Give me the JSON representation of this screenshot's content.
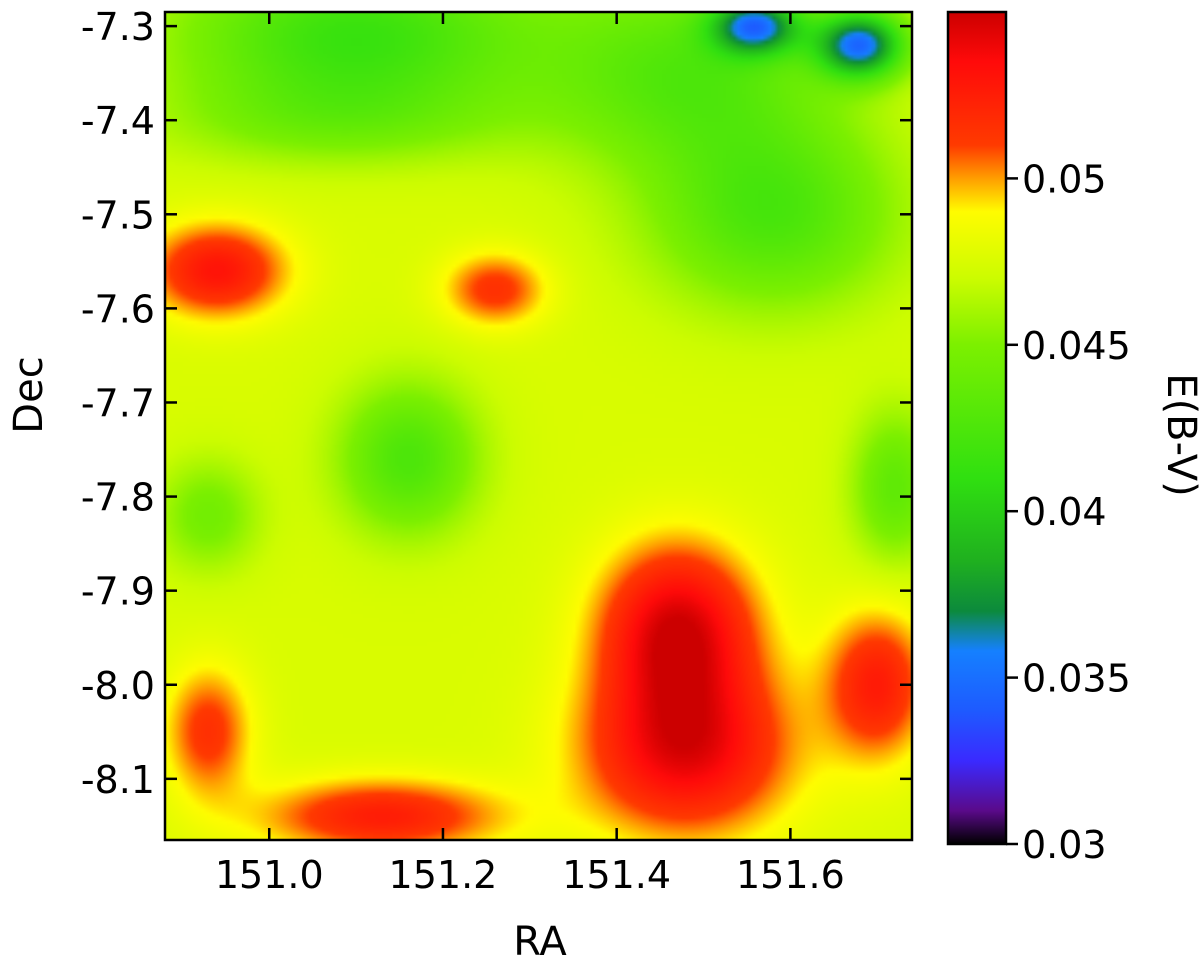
{
  "chart_data": {
    "type": "heatmap",
    "title": "",
    "xlabel": "RA",
    "ylabel": "Dec",
    "colorbar_label": "E(B-V)",
    "xlim": [
      150.88,
      151.74
    ],
    "ylim": [
      -8.165,
      -7.285
    ],
    "x_ticks": [
      151.0,
      151.2,
      151.4,
      151.6
    ],
    "x_tick_labels": [
      "151.0",
      "151.2",
      "151.4",
      "151.6"
    ],
    "y_ticks": [
      -7.3,
      -7.4,
      -7.5,
      -7.6,
      -7.7,
      -7.8,
      -7.9,
      -8.0,
      -8.1
    ],
    "y_tick_labels": [
      "-7.3",
      "-7.4",
      "-7.5",
      "-7.6",
      "-7.7",
      "-7.8",
      "-7.9",
      "-8.0",
      "-8.1"
    ],
    "colorbar": {
      "range": [
        0.03,
        0.055
      ],
      "ticks": [
        0.03,
        0.035,
        0.04,
        0.045,
        0.05
      ],
      "tick_labels": [
        "0.03",
        "0.035",
        "0.04",
        "0.045",
        "0.05"
      ],
      "colormap": [
        {
          "v": 0.03,
          "color": "#000000"
        },
        {
          "v": 0.031,
          "color": "#5a0a8a"
        },
        {
          "v": 0.0325,
          "color": "#3a2aff"
        },
        {
          "v": 0.034,
          "color": "#1e5aff"
        },
        {
          "v": 0.0358,
          "color": "#1580ff"
        },
        {
          "v": 0.037,
          "color": "#0c8a3c"
        },
        {
          "v": 0.0385,
          "color": "#1fb01f"
        },
        {
          "v": 0.041,
          "color": "#30e010"
        },
        {
          "v": 0.045,
          "color": "#7cf000"
        },
        {
          "v": 0.047,
          "color": "#ccfc00"
        },
        {
          "v": 0.049,
          "color": "#fffc00"
        },
        {
          "v": 0.05,
          "color": "#ff9e00"
        },
        {
          "v": 0.051,
          "color": "#ff3a00"
        },
        {
          "v": 0.0535,
          "color": "#ff0a0a"
        },
        {
          "v": 0.055,
          "color": "#cc0000"
        }
      ]
    },
    "grid": false,
    "background_value": 0.0475,
    "regions": [
      {
        "ra": 151.1,
        "dec": -7.31,
        "sra": 0.2,
        "sdec": 0.08,
        "value": 0.0415
      },
      {
        "ra": 151.48,
        "dec": -7.35,
        "sra": 0.16,
        "sdec": 0.1,
        "value": 0.043
      },
      {
        "ra": 151.56,
        "dec": -7.3,
        "sra": 0.05,
        "sdec": 0.03,
        "value": 0.037
      },
      {
        "ra": 151.68,
        "dec": -7.32,
        "sra": 0.05,
        "sdec": 0.035,
        "value": 0.0355
      },
      {
        "ra": 151.58,
        "dec": -7.5,
        "sra": 0.14,
        "sdec": 0.1,
        "value": 0.0425
      },
      {
        "ra": 151.08,
        "dec": -7.4,
        "sra": 0.2,
        "sdec": 0.05,
        "value": 0.045
      },
      {
        "ra": 151.16,
        "dec": -7.76,
        "sra": 0.08,
        "sdec": 0.08,
        "value": 0.0425
      },
      {
        "ra": 150.93,
        "dec": -7.82,
        "sra": 0.06,
        "sdec": 0.06,
        "value": 0.0445
      },
      {
        "ra": 151.72,
        "dec": -7.79,
        "sra": 0.05,
        "sdec": 0.08,
        "value": 0.0435
      },
      {
        "ra": 150.94,
        "dec": -7.56,
        "sra": 0.08,
        "sdec": 0.05,
        "value": 0.053
      },
      {
        "ra": 151.26,
        "dec": -7.58,
        "sra": 0.06,
        "sdec": 0.04,
        "value": 0.0515
      },
      {
        "ra": 151.47,
        "dec": -7.94,
        "sra": 0.09,
        "sdec": 0.09,
        "value": 0.0545
      },
      {
        "ra": 151.48,
        "dec": -8.07,
        "sra": 0.12,
        "sdec": 0.09,
        "value": 0.054
      },
      {
        "ra": 151.7,
        "dec": -8.0,
        "sra": 0.06,
        "sdec": 0.08,
        "value": 0.0525
      },
      {
        "ra": 151.13,
        "dec": -8.14,
        "sra": 0.14,
        "sdec": 0.04,
        "value": 0.0525
      },
      {
        "ra": 150.93,
        "dec": -8.05,
        "sra": 0.05,
        "sdec": 0.07,
        "value": 0.0515
      }
    ]
  }
}
